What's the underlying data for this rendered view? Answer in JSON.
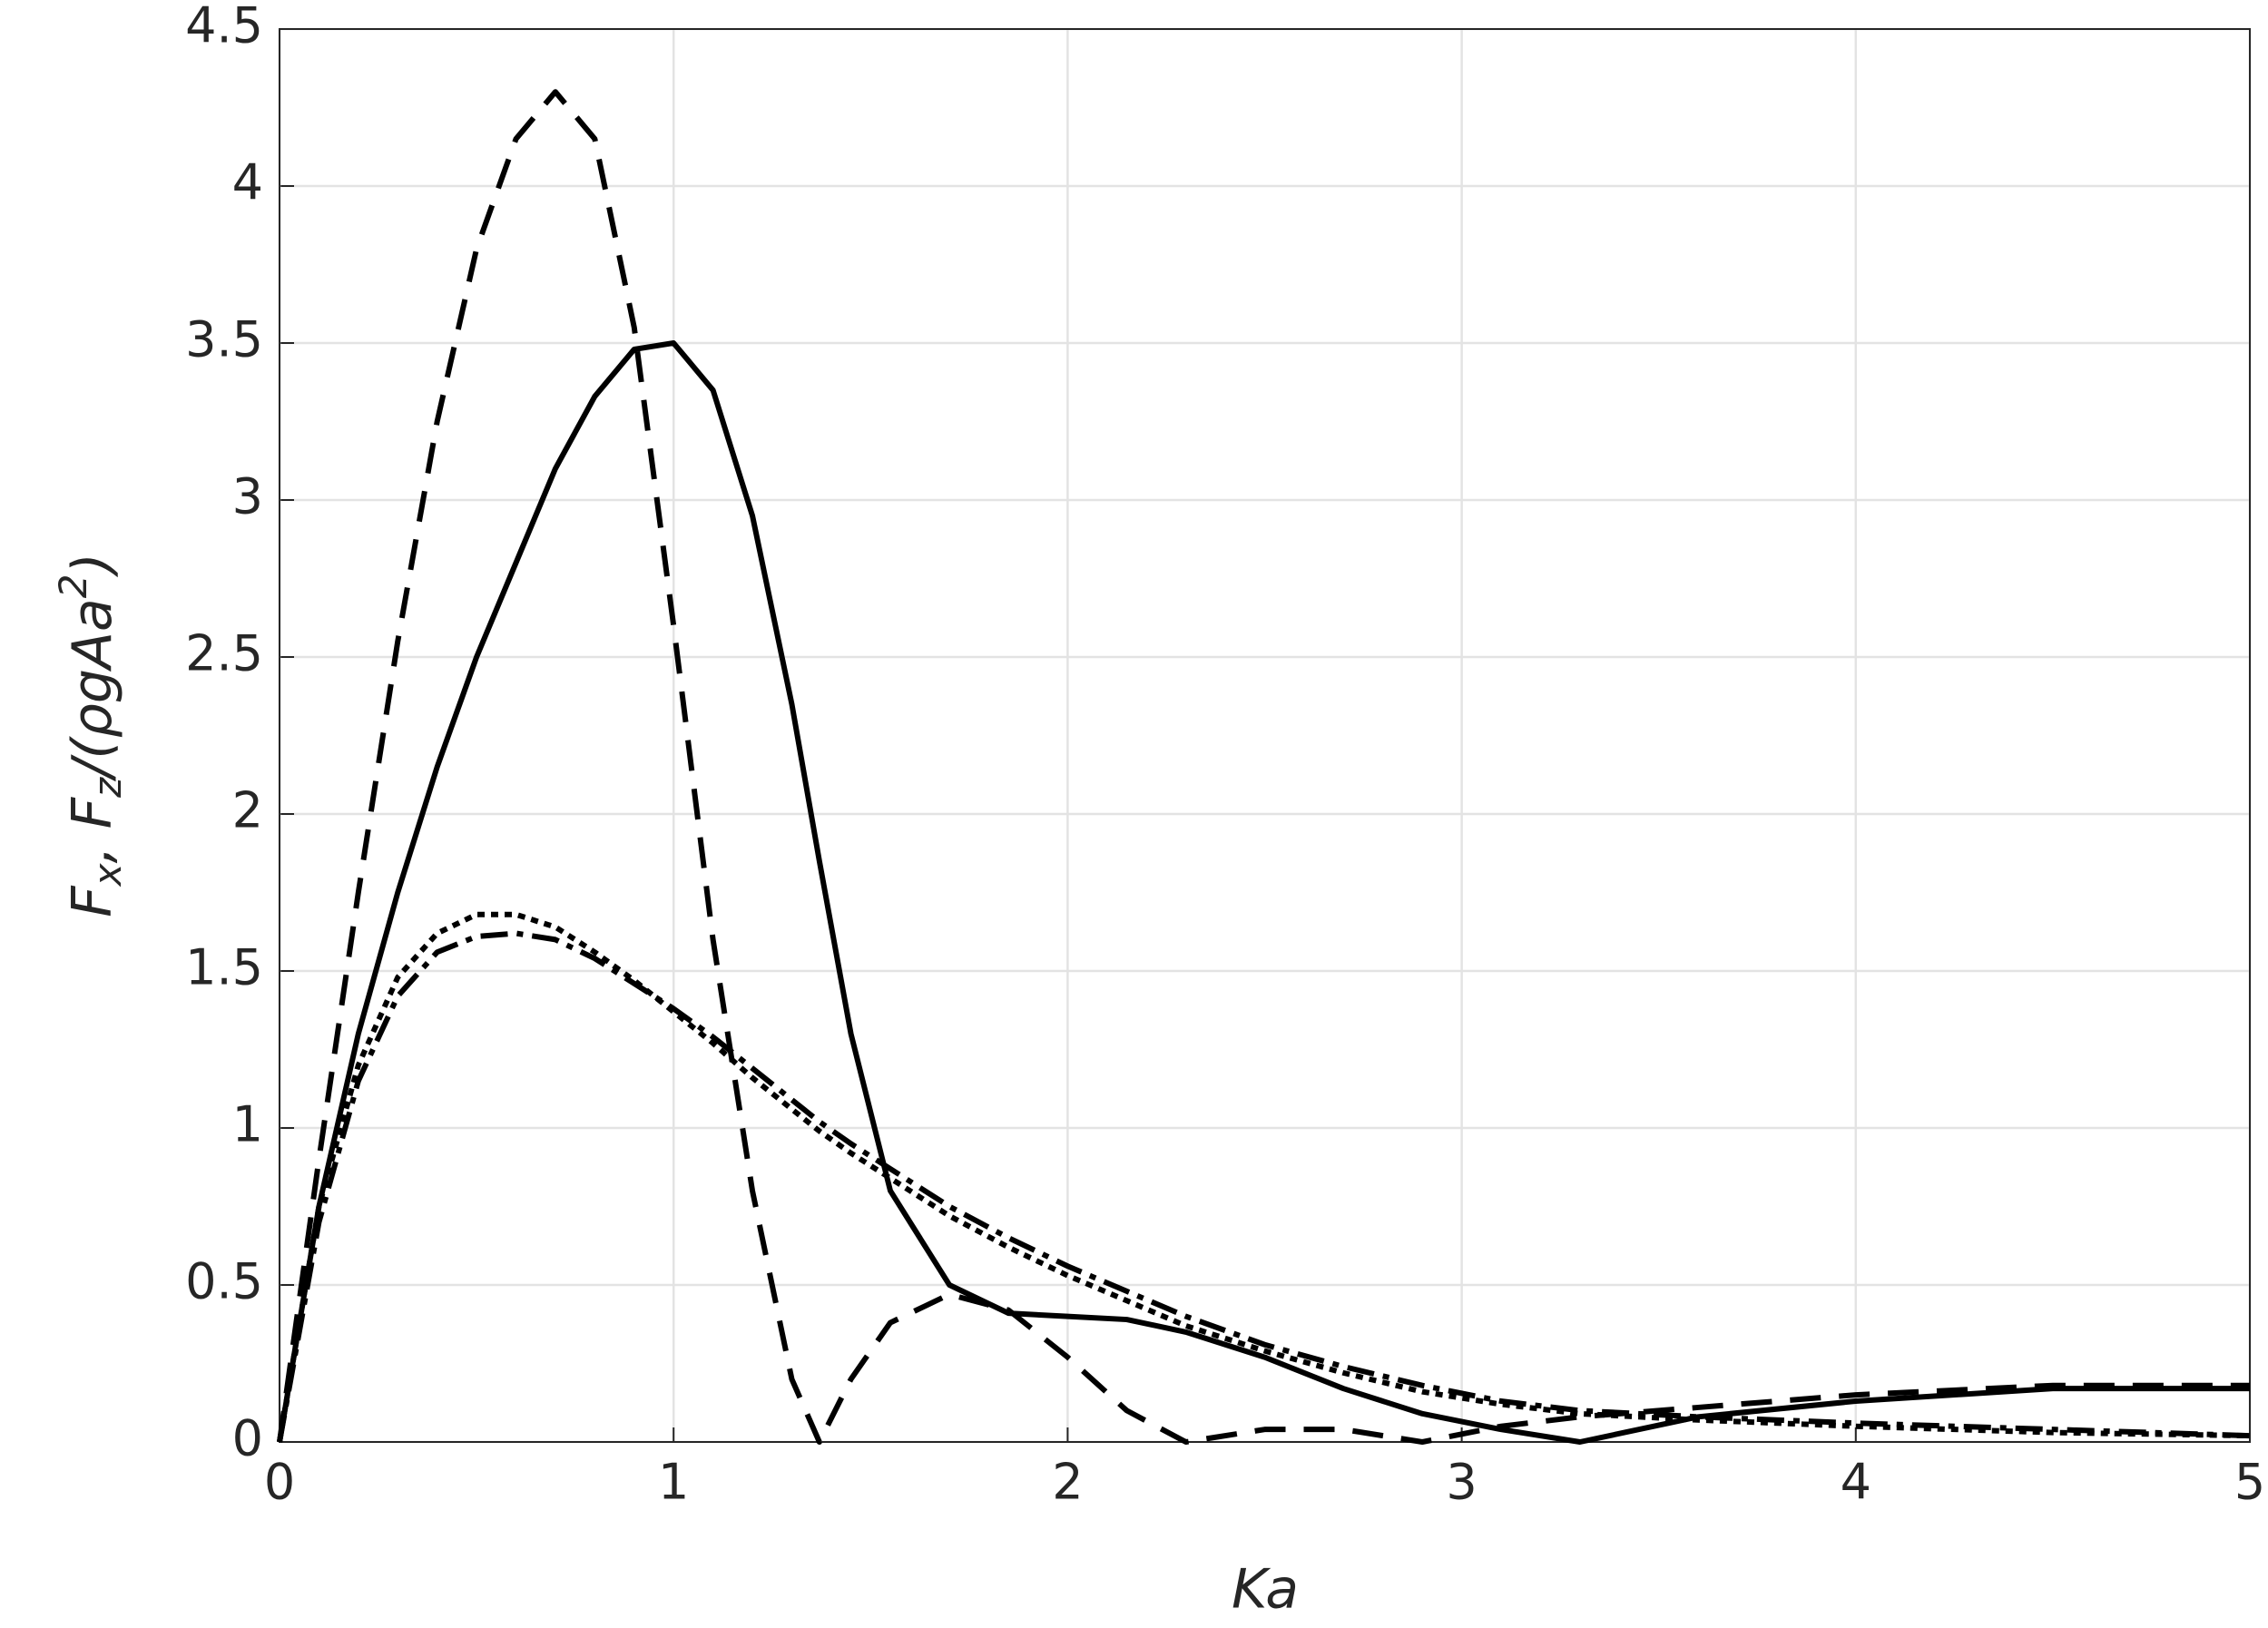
{
  "chart_data": {
    "type": "line",
    "xlabel": "Ka",
    "ylabel": [
      "F",
      "x",
      ", F",
      "z",
      "/(",
      "ρ",
      "gAa",
      "2",
      ")"
    ],
    "x": [
      0,
      0.1,
      0.2,
      0.3,
      0.4,
      0.5,
      0.6,
      0.7,
      0.8,
      0.9,
      1.0,
      1.1,
      1.2,
      1.3,
      1.37,
      1.45,
      1.55,
      1.7,
      1.85,
      2.0,
      2.15,
      2.3,
      2.5,
      2.7,
      2.9,
      3.1,
      3.3,
      3.6,
      4.0,
      4.5,
      5.0
    ],
    "series": [
      {
        "color": "#000000",
        "linestyle": "solid",
        "values": [
          0,
          0.75,
          1.3,
          1.75,
          2.15,
          2.5,
          2.8,
          3.1,
          3.33,
          3.48,
          3.5,
          3.35,
          2.95,
          2.35,
          1.85,
          1.3,
          0.8,
          0.5,
          0.41,
          0.4,
          0.39,
          0.35,
          0.27,
          0.17,
          0.09,
          0.04,
          0.0,
          0.08,
          0.13,
          0.17,
          0.17
        ]
      },
      {
        "color": "#000000",
        "linestyle": "dashed",
        "values": [
          0,
          0.9,
          1.75,
          2.55,
          3.25,
          3.8,
          4.15,
          4.3,
          4.15,
          3.55,
          2.6,
          1.6,
          0.8,
          0.2,
          0.0,
          0.2,
          0.38,
          0.47,
          0.42,
          0.27,
          0.1,
          0.0,
          0.04,
          0.04,
          0.0,
          0.05,
          0.08,
          0.11,
          0.15,
          0.18,
          0.18
        ]
      },
      {
        "color": "#000000",
        "linestyle": "dotted",
        "values": [
          0,
          0.75,
          1.2,
          1.48,
          1.62,
          1.68,
          1.68,
          1.64,
          1.56,
          1.47,
          1.37,
          1.27,
          1.16,
          1.06,
          0.99,
          0.92,
          0.84,
          0.72,
          0.62,
          0.53,
          0.45,
          0.37,
          0.29,
          0.22,
          0.16,
          0.12,
          0.09,
          0.07,
          0.05,
          0.03,
          0.02
        ]
      },
      {
        "color": "#000000",
        "linestyle": "dashdot",
        "values": [
          0,
          0.7,
          1.15,
          1.42,
          1.56,
          1.61,
          1.62,
          1.6,
          1.54,
          1.46,
          1.38,
          1.29,
          1.19,
          1.09,
          1.02,
          0.95,
          0.87,
          0.75,
          0.65,
          0.56,
          0.48,
          0.4,
          0.31,
          0.24,
          0.18,
          0.13,
          0.1,
          0.08,
          0.06,
          0.04,
          0.02
        ]
      }
    ],
    "xlim": [
      0,
      5
    ],
    "xticks": [
      0,
      1,
      2,
      3,
      4,
      5
    ],
    "ylim": [
      0,
      4.5
    ],
    "yticks": [
      0,
      0.5,
      1,
      1.5,
      2,
      2.5,
      3,
      3.5,
      4,
      4.5
    ],
    "grid": true
  }
}
